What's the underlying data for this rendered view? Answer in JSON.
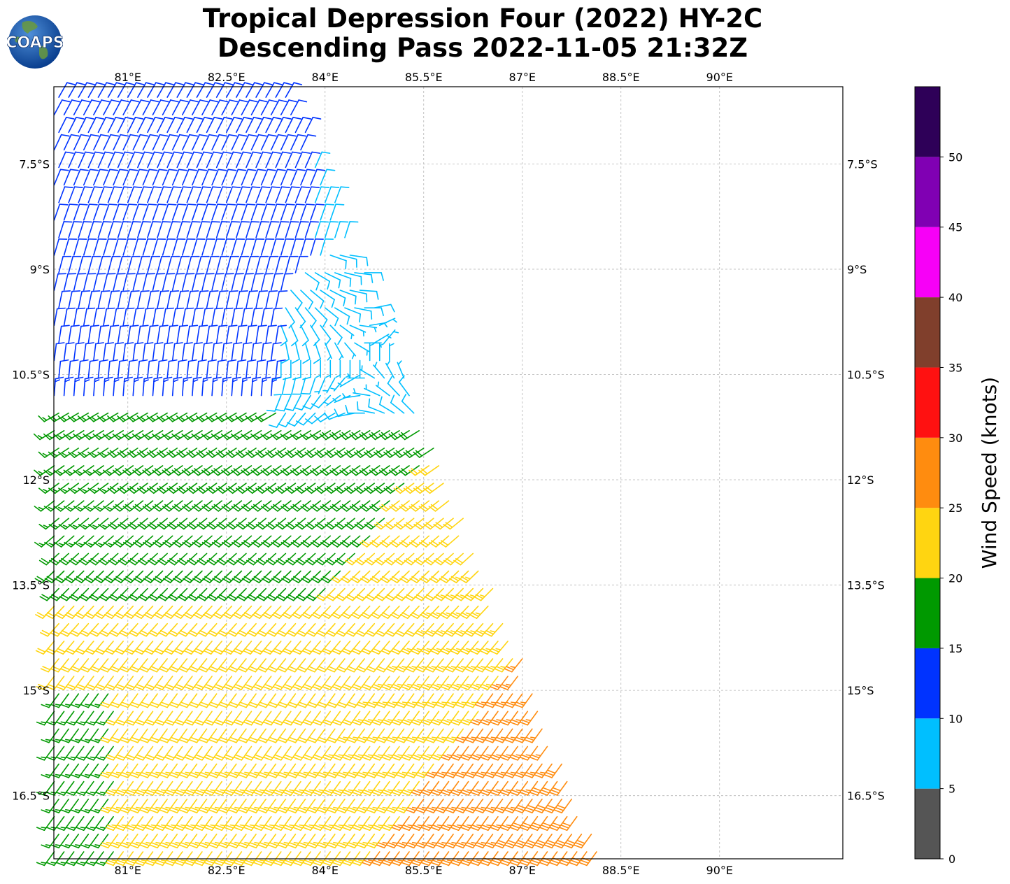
{
  "title": {
    "line1": "Tropical Depression Four (2022) HY-2C",
    "line2": "Descending Pass 2022-11-05 21:32Z"
  },
  "logo": {
    "text": "COAPS",
    "icon": "globe-icon"
  },
  "map": {
    "lon_range": [
      79.875,
      91.875
    ],
    "lat_range": [
      -17.4,
      -6.4
    ],
    "lon_ticks": [
      81,
      82.5,
      84,
      85.5,
      87,
      88.5,
      90
    ],
    "lon_tick_labels": [
      "81°E",
      "82.5°E",
      "84°E",
      "85.5°E",
      "87°E",
      "88.5°E",
      "90°E"
    ],
    "lat_ticks": [
      -7.5,
      -9,
      -10.5,
      -12,
      -13.5,
      -15,
      -16.5
    ],
    "lat_tick_labels": [
      "7.5°S",
      "9°S",
      "10.5°S",
      "12°S",
      "13.5°S",
      "15°S",
      "16.5°S"
    ],
    "gridlines": true
  },
  "colorbar": {
    "label": "Wind Speed (knots)",
    "ticks": [
      0,
      5,
      10,
      15,
      20,
      25,
      30,
      35,
      40,
      45,
      50
    ],
    "tick_labels": [
      "0",
      "5",
      "10",
      "15",
      "20",
      "25",
      "30",
      "35",
      "40",
      "45",
      "50"
    ],
    "bins": [
      {
        "from": 0,
        "to": 5,
        "color": "#555555"
      },
      {
        "from": 5,
        "to": 10,
        "color": "#00bfff"
      },
      {
        "from": 10,
        "to": 15,
        "color": "#0033ff"
      },
      {
        "from": 15,
        "to": 20,
        "color": "#009900"
      },
      {
        "from": 20,
        "to": 25,
        "color": "#ffd511"
      },
      {
        "from": 25,
        "to": 30,
        "color": "#ff8c0f"
      },
      {
        "from": 30,
        "to": 35,
        "color": "#ff1111"
      },
      {
        "from": 35,
        "to": 40,
        "color": "#803f2c"
      },
      {
        "from": 40,
        "to": 45,
        "color": "#f700f7"
      },
      {
        "from": 45,
        "to": 50,
        "color": "#8000b3"
      },
      {
        "from": 50,
        "to": 55,
        "color": "#2e0058"
      }
    ]
  },
  "swath": {
    "top_left": [
      79.95,
      -6.5
    ],
    "top_right": [
      83.5,
      -6.5
    ],
    "bottom_right": [
      88.25,
      -17.4
    ],
    "bottom_left": [
      79.95,
      -17.4
    ],
    "center": [
      84.6,
      -10.3
    ]
  }
}
